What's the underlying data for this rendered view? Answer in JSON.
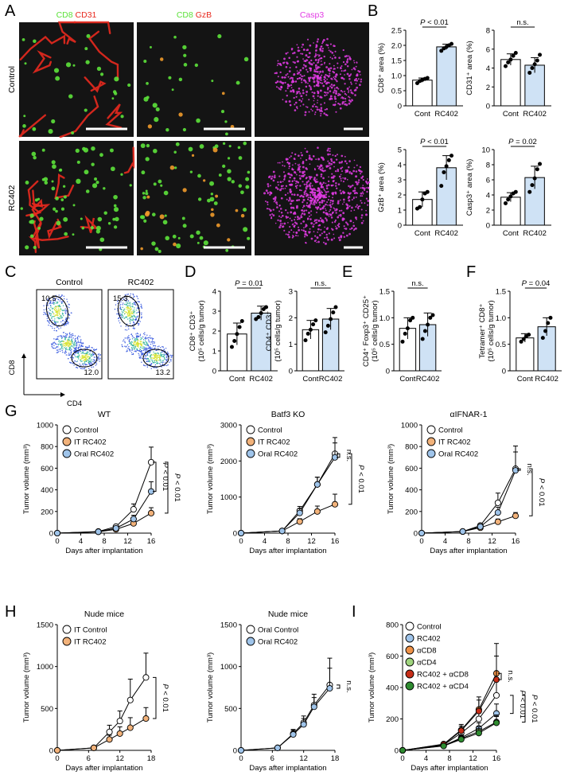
{
  "colors": {
    "control": "#ffffff",
    "it": "#f2b27a",
    "oral": "#9fc4ea",
    "bar_rc": "#cfe2f5",
    "acd8": "#ef9248",
    "acd4": "#9fd47e",
    "rc_acd8": "#c62d17",
    "rc_acd4": "#2f8c31",
    "micro_bg": "#141414",
    "micro_green": "#5ce23a",
    "micro_red": "#e8291e",
    "micro_magenta": "#e23be4"
  },
  "panel_letters": [
    "A",
    "B",
    "C",
    "D",
    "E",
    "F",
    "G",
    "H",
    "I"
  ],
  "panel_a": {
    "col_titles": [
      {
        "parts": [
          {
            "t": "CD8 ",
            "c": "green"
          },
          {
            "t": "CD31",
            "c": "red"
          }
        ]
      },
      {
        "parts": [
          {
            "t": "CD8 ",
            "c": "green"
          },
          {
            "t": "GzB",
            "c": "red"
          }
        ]
      },
      {
        "parts": [
          {
            "t": "Casp3",
            "c": "magenta"
          }
        ]
      }
    ],
    "row_labels": [
      "Control",
      "RC402"
    ]
  },
  "panel_c": {
    "titles": [
      "Control",
      "RC402"
    ],
    "gates": [
      [
        "10.5",
        "12.0"
      ],
      [
        "15.3",
        "13.2"
      ]
    ],
    "xlabel": "CD4",
    "ylabel": "CD8"
  },
  "chart_data": [
    {
      "id": "B1",
      "type": "bar",
      "categories": [
        "Cont",
        "RC402"
      ],
      "values": [
        0.85,
        1.95
      ],
      "error": [
        0.07,
        0.09
      ],
      "ylabel": "CD8⁺ area (%)",
      "ylim": [
        0,
        2.5
      ],
      "yticks": [
        "0",
        "0.5",
        "1.0",
        "1.5",
        "2.0",
        "2.5"
      ],
      "annotation": "P < 0.01",
      "points": [
        [
          0.75,
          0.82,
          0.86,
          0.89,
          0.92
        ],
        [
          1.82,
          1.9,
          1.95,
          2.0,
          2.05
        ]
      ]
    },
    {
      "id": "B2",
      "type": "bar",
      "categories": [
        "Cont",
        "RC402"
      ],
      "values": [
        4.9,
        4.3
      ],
      "error": [
        0.6,
        0.8
      ],
      "ylabel": "CD31⁺ area (%)",
      "ylim": [
        0,
        8
      ],
      "yticks": [
        "0",
        "2",
        "4",
        "6",
        "8"
      ],
      "annotation": "n.s.",
      "points": [
        [
          4.2,
          4.6,
          4.9,
          5.3,
          5.6
        ],
        [
          3.5,
          4.0,
          4.4,
          4.8,
          5.4
        ]
      ]
    },
    {
      "id": "B3",
      "type": "bar",
      "categories": [
        "Cont",
        "RC402"
      ],
      "values": [
        1.7,
        3.8
      ],
      "error": [
        0.5,
        0.8
      ],
      "ylabel": "GzB⁺ area (%)",
      "ylim": [
        0,
        5
      ],
      "yticks": [
        "0",
        "1",
        "2",
        "3",
        "4",
        "5"
      ],
      "annotation": "P < 0.01",
      "points": [
        [
          1.1,
          1.2,
          1.7,
          2.1,
          2.2
        ],
        [
          2.6,
          3.5,
          3.9,
          4.3,
          4.6
        ]
      ]
    },
    {
      "id": "B4",
      "type": "bar",
      "categories": [
        "Cont",
        "RC402"
      ],
      "values": [
        3.7,
        6.3
      ],
      "error": [
        0.6,
        1.5
      ],
      "ylabel": "Casp3⁺ area (%)",
      "ylim": [
        0,
        10
      ],
      "yticks": [
        "0",
        "2",
        "4",
        "6",
        "8",
        "10"
      ],
      "annotation": "P = 0.02",
      "points": [
        [
          2.9,
          3.4,
          3.8,
          4.2,
          4.4
        ],
        [
          4.4,
          5.3,
          6.2,
          7.4,
          8.1
        ]
      ]
    },
    {
      "id": "D1",
      "type": "bar",
      "categories": [
        "Cont",
        "RC402"
      ],
      "values": [
        1.85,
        2.9
      ],
      "error": [
        0.55,
        0.35
      ],
      "ylabel": "CD8⁺ CD3⁺|(10⁵ cells/g tumor)",
      "ylim": [
        0,
        4
      ],
      "yticks": [
        "0",
        "1",
        "2",
        "3",
        "4"
      ],
      "annotation": "P = 0.01",
      "points": [
        [
          1.2,
          1.5,
          1.85,
          2.2,
          2.5
        ],
        [
          2.6,
          2.7,
          2.9,
          3.1,
          3.2
        ]
      ]
    },
    {
      "id": "D2",
      "type": "bar",
      "categories": [
        "Cont",
        "RC402"
      ],
      "values": [
        1.55,
        1.95
      ],
      "error": [
        0.35,
        0.4
      ],
      "ylabel": "CD4⁺ CD3⁺|(10⁵ cells/g tumor)",
      "ylim": [
        0,
        3
      ],
      "yticks": [
        "0",
        "1",
        "2",
        "3"
      ],
      "annotation": "n.s.",
      "points": [
        [
          1.15,
          1.4,
          1.55,
          1.75,
          1.9
        ],
        [
          1.45,
          1.7,
          1.95,
          2.2,
          2.4
        ]
      ]
    },
    {
      "id": "E1",
      "type": "bar",
      "categories": [
        "Cont",
        "RC402"
      ],
      "values": [
        0.8,
        0.87
      ],
      "error": [
        0.2,
        0.22
      ],
      "ylabel": "CD4⁺ Foxp3⁺ CD25⁺|(10⁵ cells/g tumor)",
      "ylim": [
        0,
        1.5
      ],
      "yticks": [
        "0",
        "0.5",
        "1.0",
        "1.5"
      ],
      "annotation": "n.s.",
      "points": [
        [
          0.55,
          0.7,
          0.8,
          0.95,
          1.0
        ],
        [
          0.6,
          0.75,
          0.87,
          1.0,
          1.05
        ]
      ]
    },
    {
      "id": "F1",
      "type": "bar",
      "categories": [
        "Cont",
        "RC402"
      ],
      "values": [
        0.62,
        0.83
      ],
      "error": [
        0.08,
        0.17
      ],
      "ylabel": "Tetramer⁺ CD8⁺|(10⁵ cells/g tumor)",
      "ylim": [
        0,
        1.5
      ],
      "yticks": [
        "0",
        "0.5",
        "1.0",
        "1.5"
      ],
      "annotation": "P = 0.04",
      "points": [
        [
          0.55,
          0.6,
          0.65,
          0.68
        ],
        [
          0.62,
          0.75,
          0.9,
          1.0
        ]
      ]
    },
    {
      "id": "G1",
      "type": "line",
      "title": "WT",
      "x": [
        0,
        7,
        10,
        13,
        16
      ],
      "xticks": [
        "0",
        "4",
        "8",
        "12",
        "16"
      ],
      "xlabel": "Days after implantation",
      "ylabel": "Tumor volume (mm³)",
      "ylim": [
        0,
        1000
      ],
      "yticks": [
        "0",
        "200",
        "400",
        "600",
        "800",
        "1000"
      ],
      "series": [
        {
          "name": "Control",
          "color": "control",
          "values": [
            0,
            15,
            60,
            220,
            655
          ],
          "error": [
            0,
            5,
            15,
            50,
            140
          ]
        },
        {
          "name": "IT RC402",
          "color": "it",
          "values": [
            0,
            12,
            35,
            90,
            185
          ],
          "error": [
            0,
            4,
            10,
            25,
            50
          ]
        },
        {
          "name": "Oral RC402",
          "color": "oral",
          "values": [
            0,
            13,
            45,
            130,
            385
          ],
          "error": [
            0,
            4,
            12,
            35,
            90
          ]
        }
      ],
      "brackets": [
        {
          "from": 0,
          "to": 2,
          "label": "P < 0.01"
        },
        {
          "from": 0,
          "to": 1,
          "label": "P < 0.01"
        }
      ]
    },
    {
      "id": "G2",
      "type": "line",
      "title": "Batf3 KO",
      "x": [
        0,
        7,
        10,
        13,
        16
      ],
      "xticks": [
        "0",
        "4",
        "8",
        "12",
        "16"
      ],
      "xlabel": "Days after implantation",
      "ylabel": "Tumor volume (mm³)",
      "ylim": [
        0,
        3000
      ],
      "yticks": [
        "0",
        "1000",
        "2000",
        "3000"
      ],
      "series": [
        {
          "name": "Control",
          "color": "control",
          "values": [
            0,
            60,
            620,
            1350,
            2200
          ],
          "error": [
            0,
            10,
            120,
            200,
            450
          ]
        },
        {
          "name": "IT RC402",
          "color": "it",
          "values": [
            0,
            60,
            320,
            600,
            800
          ],
          "error": [
            0,
            10,
            80,
            150,
            280
          ]
        },
        {
          "name": "Oral RC402",
          "color": "oral",
          "values": [
            0,
            60,
            560,
            1350,
            2100
          ],
          "error": [
            0,
            10,
            120,
            200,
            400
          ]
        }
      ],
      "brackets": [
        {
          "from": 0,
          "to": 2,
          "label": "n.s."
        },
        {
          "from": 0,
          "to": 1,
          "label": "P < 0.01"
        }
      ]
    },
    {
      "id": "G3",
      "type": "line",
      "title": "αIFNAR-1",
      "x": [
        0,
        7,
        10,
        13,
        16
      ],
      "xticks": [
        "0",
        "4",
        "8",
        "12",
        "16"
      ],
      "xlabel": "Days after implantation",
      "ylabel": "Tumor volume (mm³)",
      "ylim": [
        0,
        1000
      ],
      "yticks": [
        "0",
        "200",
        "400",
        "600",
        "800",
        "1000"
      ],
      "series": [
        {
          "name": "Control",
          "color": "control",
          "values": [
            0,
            15,
            70,
            280,
            595
          ],
          "error": [
            0,
            5,
            15,
            90,
            210
          ]
        },
        {
          "name": "IT RC402",
          "color": "it",
          "values": [
            0,
            15,
            50,
            105,
            160
          ],
          "error": [
            0,
            5,
            12,
            25,
            30
          ]
        },
        {
          "name": "Oral RC402",
          "color": "oral",
          "values": [
            0,
            15,
            60,
            190,
            580
          ],
          "error": [
            0,
            5,
            15,
            50,
            170
          ]
        }
      ],
      "brackets": [
        {
          "from": 0,
          "to": 2,
          "label": "n.s."
        },
        {
          "from": 0,
          "to": 1,
          "label": "P < 0.01"
        }
      ]
    },
    {
      "id": "H1",
      "type": "line",
      "title": "Nude mice",
      "x": [
        0,
        7,
        10,
        12,
        14,
        17
      ],
      "xticks": [
        "0",
        "6",
        "12",
        "18"
      ],
      "xmax": 18,
      "xlabel": "Days after implantation",
      "ylabel": "Tumor volume (mm³)",
      "ylim": [
        0,
        1500
      ],
      "yticks": [
        "0",
        "500",
        "1000",
        "1500"
      ],
      "series": [
        {
          "name": "IT Control",
          "color": "control",
          "values": [
            0,
            30,
            220,
            350,
            600,
            870
          ],
          "error": [
            0,
            10,
            80,
            120,
            250,
            290
          ]
        },
        {
          "name": "IT RC402",
          "color": "it",
          "values": [
            0,
            30,
            130,
            200,
            270,
            380
          ],
          "error": [
            0,
            10,
            50,
            80,
            120,
            130
          ]
        }
      ],
      "brackets": [
        {
          "from": 0,
          "to": 1,
          "label": "P < 0.01"
        }
      ]
    },
    {
      "id": "H2",
      "type": "line",
      "title": "Nude mice",
      "x": [
        0,
        7,
        10,
        12,
        14,
        17
      ],
      "xticks": [
        "0",
        "6",
        "12",
        "18"
      ],
      "xmax": 18,
      "xlabel": "Days after implantation",
      "ylabel": "Tumor volume (mm³)",
      "ylim": [
        0,
        1500
      ],
      "yticks": [
        "0",
        "500",
        "1000",
        "1500"
      ],
      "series": [
        {
          "name": "Oral Control",
          "color": "control",
          "values": [
            0,
            30,
            200,
            330,
            540,
            780
          ],
          "error": [
            0,
            8,
            50,
            80,
            130,
            320
          ]
        },
        {
          "name": "Oral RC402",
          "color": "oral",
          "values": [
            0,
            30,
            190,
            310,
            520,
            740
          ],
          "error": [
            0,
            8,
            50,
            70,
            110,
            240
          ]
        }
      ],
      "brackets": [
        {
          "from": 0,
          "to": 1,
          "label": "n.s."
        }
      ]
    },
    {
      "id": "I1",
      "type": "line",
      "x": [
        0,
        7,
        10,
        13,
        16
      ],
      "xticks": [
        "0",
        "4",
        "8",
        "12",
        "16"
      ],
      "xlabel": "Days after implantation",
      "ylabel": "Tumor volume (mm³)",
      "ylim": [
        0,
        800
      ],
      "yticks": [
        "0",
        "200",
        "400",
        "600",
        "800"
      ],
      "series": [
        {
          "name": "Control",
          "color": "control",
          "values": [
            0,
            35,
            110,
            200,
            350
          ],
          "error": [
            0,
            8,
            25,
            50,
            100
          ]
        },
        {
          "name": "RC402",
          "color": "oral",
          "values": [
            0,
            30,
            80,
            140,
            235
          ],
          "error": [
            0,
            8,
            20,
            35,
            60
          ]
        },
        {
          "name": "αCD8",
          "color": "acd8",
          "values": [
            0,
            40,
            130,
            260,
            490
          ],
          "error": [
            0,
            10,
            35,
            80,
            190
          ]
        },
        {
          "name": "αCD4",
          "color": "acd4",
          "values": [
            0,
            30,
            75,
            120,
            180
          ],
          "error": [
            0,
            8,
            20,
            30,
            45
          ]
        },
        {
          "name": "RC402 + αCD8",
          "color": "rc_acd8",
          "values": [
            0,
            38,
            125,
            250,
            450
          ],
          "error": [
            0,
            10,
            30,
            70,
            150
          ]
        },
        {
          "name": "RC402 + αCD4",
          "color": "rc_acd4",
          "values": [
            0,
            28,
            70,
            110,
            175
          ],
          "error": [
            0,
            8,
            18,
            28,
            40
          ]
        }
      ],
      "brackets": [
        {
          "from": 2,
          "to": 4,
          "label": "n.s."
        },
        {
          "from": 0,
          "to": 1,
          "label": "P < 0.01"
        },
        {
          "from": 0,
          "to": 3,
          "label": "P < 0.01"
        }
      ]
    }
  ]
}
